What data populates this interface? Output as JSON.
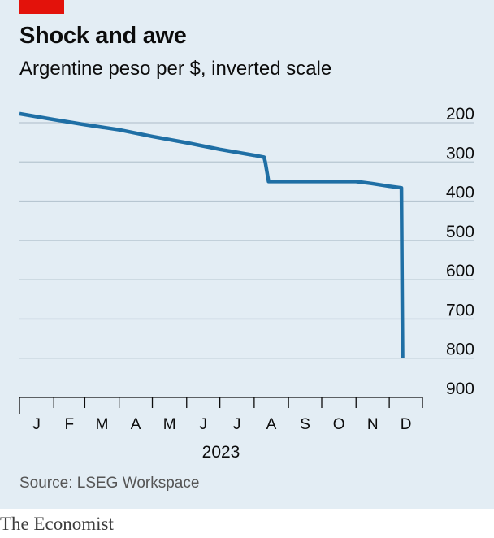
{
  "title": "Shock and awe",
  "subtitle": "Argentine peso per $, inverted scale",
  "source": "Source: LSEG Workspace",
  "brand": "The Economist",
  "colors": {
    "background": "#e3edf4",
    "line": "#1f6fa5",
    "grid": "#b7c6d1",
    "accent": "#e3120b"
  },
  "chart_data": {
    "type": "line",
    "title": "Shock and awe",
    "subtitle": "Argentine peso per $, inverted scale",
    "ylabel": "Argentine peso per $",
    "y_inverted": true,
    "ylim": [
      200,
      900
    ],
    "y_ticks": [
      200,
      300,
      400,
      500,
      600,
      700,
      800,
      900
    ],
    "x_ticks": [
      "J",
      "F",
      "M",
      "A",
      "M",
      "J",
      "J",
      "A",
      "S",
      "O",
      "N",
      "D"
    ],
    "x_year_label": "2023",
    "xlim": [
      "2023-01-01",
      "2023-12-31"
    ],
    "grid": true,
    "series": [
      {
        "values": [
          [
            "2023-01-01",
            177
          ],
          [
            "2023-02-01",
            192
          ],
          [
            "2023-03-01",
            205
          ],
          [
            "2023-04-01",
            218
          ],
          [
            "2023-05-01",
            235
          ],
          [
            "2023-06-01",
            251
          ],
          [
            "2023-07-01",
            268
          ],
          [
            "2023-08-01",
            283
          ],
          [
            "2023-08-10",
            288
          ],
          [
            "2023-08-11",
            300
          ],
          [
            "2023-08-14",
            350
          ],
          [
            "2023-09-01",
            350
          ],
          [
            "2023-10-01",
            350
          ],
          [
            "2023-11-01",
            350
          ],
          [
            "2023-11-15",
            355
          ],
          [
            "2023-12-01",
            362
          ],
          [
            "2023-12-12",
            366
          ],
          [
            "2023-12-13",
            800
          ]
        ]
      }
    ]
  }
}
